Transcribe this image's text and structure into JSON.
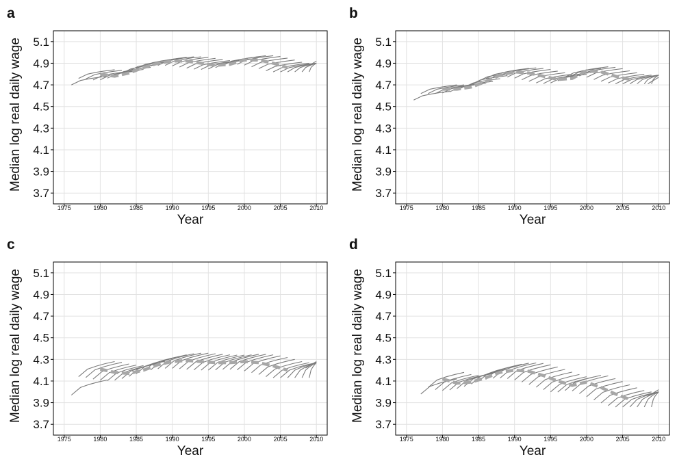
{
  "colors": {
    "grid": "#e2e2e2",
    "cohort": "#7a7a7a",
    "median": "#a7a7a7",
    "frame": "#000000"
  },
  "chart_data": [
    {
      "type": "line",
      "panel_label": "a",
      "xlabel": "Year",
      "ylabel": "Median log real daily wage",
      "xlim": [
        1973.5,
        2011.5
      ],
      "ylim": [
        3.6,
        5.2
      ],
      "x_ticks": [
        1975,
        1980,
        1985,
        1990,
        1995,
        2000,
        2005,
        2010
      ],
      "x_tick_labels": [
        "1975",
        "1980",
        "1985",
        "1990",
        "1995",
        "2000",
        "2005",
        "2010"
      ],
      "y_ticks": [
        3.7,
        3.9,
        4.1,
        4.3,
        4.5,
        4.7,
        4.9,
        5.1
      ],
      "y_tick_labels": [
        "3.7",
        "3.9",
        "4.1",
        "4.3",
        "4.5",
        "4.7",
        "4.9",
        "5.1"
      ],
      "grid": true,
      "median_dashed": {
        "x": [
          1980,
          1982,
          1984,
          1986,
          1988,
          1990,
          1992,
          1994,
          1996,
          1998,
          2000,
          2002,
          2004,
          2006
        ],
        "y": [
          4.8,
          4.78,
          4.81,
          4.86,
          4.9,
          4.92,
          4.92,
          4.9,
          4.88,
          4.89,
          4.93,
          4.93,
          4.9,
          4.86
        ]
      },
      "cohort_spans": {
        "start_x": 1976,
        "start_y": 4.7,
        "step_x": 1,
        "end_x": 2010,
        "end_y": 4.92,
        "length_years": 5,
        "slope": 0.04
      }
    },
    {
      "type": "line",
      "panel_label": "b",
      "xlabel": "Year",
      "ylabel": "Median log real daily wage",
      "xlim": [
        1973.5,
        2011.5
      ],
      "ylim": [
        3.6,
        5.2
      ],
      "x_ticks": [
        1975,
        1980,
        1985,
        1990,
        1995,
        2000,
        2005,
        2010
      ],
      "x_tick_labels": [
        "1975",
        "1980",
        "1985",
        "1990",
        "1995",
        "2000",
        "2005",
        "2010"
      ],
      "y_ticks": [
        3.7,
        3.9,
        4.1,
        4.3,
        4.5,
        4.7,
        4.9,
        5.1
      ],
      "y_tick_labels": [
        "3.7",
        "3.9",
        "4.1",
        "4.3",
        "4.5",
        "4.7",
        "4.9",
        "5.1"
      ],
      "grid": true,
      "median_dashed": {
        "x": [
          1980,
          1982,
          1984,
          1986,
          1988,
          1990,
          1992,
          1994,
          1996,
          1998,
          2000,
          2002,
          2004,
          2006
        ],
        "y": [
          4.66,
          4.66,
          4.68,
          4.73,
          4.79,
          4.82,
          4.81,
          4.78,
          4.75,
          4.76,
          4.83,
          4.82,
          4.78,
          4.75
        ]
      },
      "cohort_spans": {
        "start_x": 1976,
        "start_y": 4.56,
        "step_x": 1,
        "end_x": 2010,
        "end_y": 4.77,
        "length_years": 5,
        "slope": 0.04
      }
    },
    {
      "type": "line",
      "panel_label": "c",
      "xlabel": "Year",
      "ylabel": "Median log real daily wage",
      "xlim": [
        1973.5,
        2011.5
      ],
      "ylim": [
        3.6,
        5.2
      ],
      "x_ticks": [
        1975,
        1980,
        1985,
        1990,
        1995,
        2000,
        2005,
        2010
      ],
      "x_tick_labels": [
        "1975",
        "1980",
        "1985",
        "1990",
        "1995",
        "2000",
        "2005",
        "2010"
      ],
      "y_ticks": [
        3.7,
        3.9,
        4.1,
        4.3,
        4.5,
        4.7,
        4.9,
        5.1
      ],
      "y_tick_labels": [
        "3.7",
        "3.9",
        "4.1",
        "4.3",
        "4.5",
        "4.7",
        "4.9",
        "5.1"
      ],
      "grid": true,
      "median_dashed": {
        "x": [
          1980,
          1982,
          1984,
          1986,
          1988,
          1990,
          1992,
          1994,
          1996,
          1998,
          2000,
          2002,
          2004,
          2006
        ],
        "y": [
          4.21,
          4.18,
          4.17,
          4.2,
          4.25,
          4.28,
          4.29,
          4.28,
          4.27,
          4.27,
          4.28,
          4.27,
          4.24,
          4.2
        ]
      },
      "cohort_spans": {
        "start_x": 1976,
        "start_y": 3.97,
        "step_x": 1,
        "end_x": 2010,
        "end_y": 4.28,
        "length_years": 5,
        "slope": 0.07
      }
    },
    {
      "type": "line",
      "panel_label": "d",
      "xlabel": "Year",
      "ylabel": "Median log real daily wage",
      "xlim": [
        1973.5,
        2011.5
      ],
      "ylim": [
        3.6,
        5.2
      ],
      "x_ticks": [
        1975,
        1980,
        1985,
        1990,
        1995,
        2000,
        2005,
        2010
      ],
      "x_tick_labels": [
        "1975",
        "1980",
        "1985",
        "1990",
        "1995",
        "2000",
        "2005",
        "2010"
      ],
      "y_ticks": [
        3.7,
        3.9,
        4.1,
        4.3,
        4.5,
        4.7,
        4.9,
        5.1
      ],
      "y_tick_labels": [
        "3.7",
        "3.9",
        "4.1",
        "4.3",
        "4.5",
        "4.7",
        "4.9",
        "5.1"
      ],
      "grid": true,
      "median_dashed": {
        "x": [
          1980,
          1982,
          1984,
          1986,
          1988,
          1990,
          1992,
          1994,
          1996,
          1998,
          2000,
          2002,
          2004,
          2006
        ],
        "y": [
          4.12,
          4.08,
          4.09,
          4.13,
          4.18,
          4.2,
          4.19,
          4.15,
          4.1,
          4.06,
          4.09,
          4.04,
          3.98,
          3.93
        ]
      },
      "cohort_spans": {
        "start_x": 1977,
        "start_y": 3.98,
        "step_x": 1,
        "end_x": 2010,
        "end_y": 4.02,
        "length_years": 5,
        "slope": 0.07
      }
    }
  ]
}
